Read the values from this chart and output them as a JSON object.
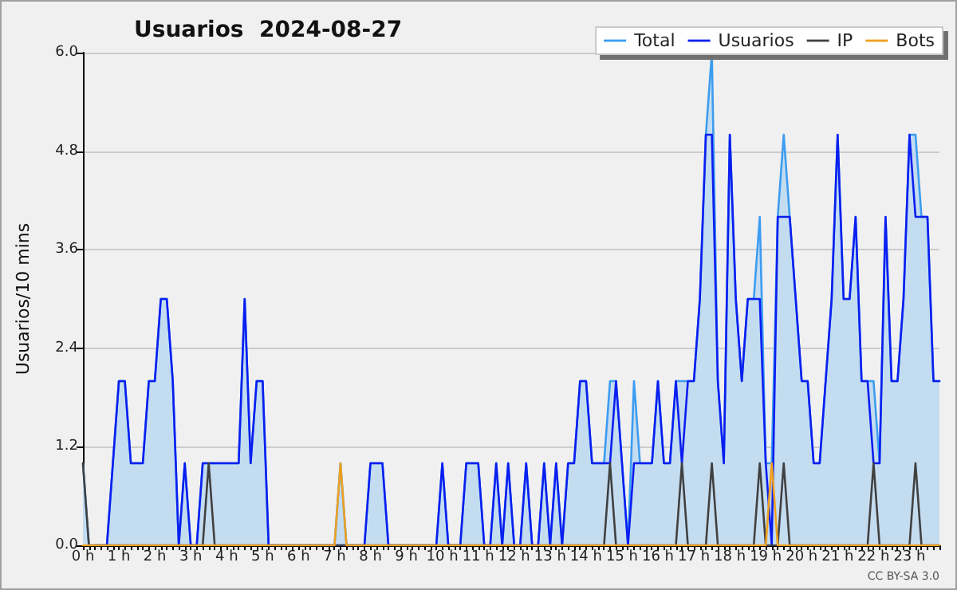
{
  "chart_data": {
    "type": "line",
    "title": "Usuarios  2024-08-27",
    "ylabel": "Usuarios/10 mins",
    "annotations": [
      "CC BY-SA 3.0"
    ],
    "categories": [
      "0 h",
      null,
      null,
      null,
      null,
      null,
      "1 h",
      null,
      null,
      null,
      null,
      null,
      "2 h",
      null,
      null,
      null,
      null,
      null,
      "3 h",
      null,
      null,
      null,
      null,
      null,
      "4 h",
      null,
      null,
      null,
      null,
      null,
      "5 h",
      null,
      null,
      null,
      null,
      null,
      "6 h",
      null,
      null,
      null,
      null,
      null,
      "7 h",
      null,
      null,
      null,
      null,
      null,
      "8 h",
      null,
      null,
      null,
      null,
      null,
      "9 h",
      null,
      null,
      null,
      null,
      null,
      "10 h",
      null,
      null,
      null,
      null,
      null,
      "11 h",
      null,
      null,
      null,
      null,
      null,
      "12 h",
      null,
      null,
      null,
      null,
      null,
      "13 h",
      null,
      null,
      null,
      null,
      null,
      "14 h",
      null,
      null,
      null,
      null,
      null,
      "15 h",
      null,
      null,
      null,
      null,
      null,
      "16 h",
      null,
      null,
      null,
      null,
      null,
      "17 h",
      null,
      null,
      null,
      null,
      null,
      "18 h",
      null,
      null,
      null,
      null,
      null,
      "19 h",
      null,
      null,
      null,
      null,
      null,
      "20 h",
      null,
      null,
      null,
      null,
      null,
      "21 h",
      null,
      null,
      null,
      null,
      null,
      "22 h",
      null,
      null,
      null,
      null,
      null,
      "23 h",
      null,
      null,
      null,
      null,
      null
    ],
    "series": [
      {
        "name": "Total",
        "type": "area",
        "color": "#3c9cf0",
        "values": [
          1,
          0,
          0,
          0,
          0,
          1,
          2,
          2,
          1,
          1,
          1,
          2,
          2,
          3,
          3,
          2,
          0,
          1,
          0,
          0,
          1,
          1,
          1,
          1,
          1,
          1,
          1,
          3,
          1,
          2,
          2,
          0,
          0,
          0,
          0,
          0,
          0,
          0,
          0,
          0,
          0,
          0,
          0,
          1,
          0,
          0,
          0,
          0,
          1,
          1,
          1,
          0,
          0,
          0,
          0,
          0,
          0,
          0,
          0,
          0,
          1,
          0,
          0,
          0,
          1,
          1,
          1,
          0,
          0,
          1,
          0,
          1,
          0,
          0,
          1,
          0,
          0,
          1,
          0,
          1,
          0,
          1,
          1,
          2,
          2,
          1,
          1,
          1,
          2,
          2,
          1,
          0,
          2,
          1,
          1,
          1,
          2,
          1,
          1,
          2,
          2,
          2,
          2,
          3,
          5,
          6,
          2,
          1,
          5,
          3,
          2,
          3,
          3,
          4,
          1,
          1,
          4,
          5,
          4,
          3,
          2,
          2,
          1,
          1,
          2,
          3,
          5,
          3,
          3,
          4,
          2,
          2,
          2,
          1,
          4,
          2,
          2,
          3,
          5,
          5,
          4,
          4,
          2,
          2
        ]
      },
      {
        "name": "Usuarios",
        "color": "#0a1ef0",
        "values": [
          null,
          null,
          0,
          0,
          0,
          1,
          2,
          2,
          1,
          1,
          1,
          2,
          2,
          3,
          3,
          2,
          0,
          1,
          0,
          0,
          1,
          1,
          1,
          1,
          1,
          1,
          1,
          3,
          1,
          2,
          2,
          0,
          0,
          0,
          0,
          0,
          0,
          0,
          0,
          0,
          0,
          0,
          0,
          0,
          0,
          0,
          0,
          0,
          1,
          1,
          1,
          0,
          0,
          0,
          0,
          0,
          0,
          0,
          0,
          0,
          1,
          0,
          0,
          0,
          1,
          1,
          1,
          0,
          0,
          1,
          0,
          1,
          0,
          0,
          1,
          0,
          0,
          1,
          0,
          1,
          0,
          1,
          1,
          2,
          2,
          1,
          1,
          1,
          1,
          2,
          1,
          0,
          1,
          1,
          1,
          1,
          2,
          1,
          1,
          2,
          1,
          2,
          2,
          3,
          5,
          5,
          2,
          1,
          5,
          3,
          2,
          3,
          3,
          3,
          1,
          0,
          4,
          4,
          4,
          3,
          2,
          2,
          1,
          1,
          2,
          3,
          5,
          3,
          3,
          4,
          2,
          2,
          1,
          1,
          4,
          2,
          2,
          3,
          5,
          4,
          4,
          4,
          2,
          2
        ]
      },
      {
        "name": "IP",
        "color": "#404040",
        "values": [
          1,
          0,
          0,
          0,
          0,
          0,
          0,
          0,
          0,
          0,
          0,
          0,
          0,
          0,
          0,
          0,
          0,
          0,
          0,
          0,
          0,
          1,
          0,
          0,
          0,
          0,
          0,
          0,
          0,
          0,
          0,
          0,
          0,
          0,
          0,
          0,
          0,
          0,
          0,
          0,
          0,
          0,
          0,
          0,
          0,
          0,
          0,
          0,
          0,
          0,
          0,
          0,
          0,
          0,
          0,
          0,
          0,
          0,
          0,
          0,
          0,
          0,
          0,
          0,
          0,
          0,
          0,
          0,
          0,
          0,
          0,
          0,
          0,
          0,
          0,
          0,
          0,
          0,
          0,
          0,
          0,
          0,
          0,
          0,
          0,
          0,
          0,
          0,
          1,
          0,
          0,
          0,
          0,
          0,
          0,
          0,
          0,
          0,
          0,
          0,
          1,
          0,
          0,
          0,
          0,
          1,
          0,
          0,
          0,
          0,
          0,
          0,
          0,
          1,
          0,
          0,
          0,
          1,
          0,
          0,
          0,
          0,
          0,
          0,
          0,
          0,
          0,
          0,
          0,
          0,
          0,
          0,
          1,
          0,
          0,
          0,
          0,
          0,
          0,
          1,
          0,
          0,
          0,
          0
        ]
      },
      {
        "name": "Bots",
        "color": "#f0a020",
        "values": [
          0,
          0,
          0,
          0,
          0,
          0,
          0,
          0,
          0,
          0,
          0,
          0,
          0,
          0,
          0,
          0,
          0,
          0,
          0,
          0,
          0,
          0,
          0,
          0,
          0,
          0,
          0,
          0,
          0,
          0,
          0,
          0,
          0,
          0,
          0,
          0,
          0,
          0,
          0,
          0,
          0,
          0,
          0,
          1,
          0,
          0,
          0,
          0,
          0,
          0,
          0,
          0,
          0,
          0,
          0,
          0,
          0,
          0,
          0,
          0,
          0,
          0,
          0,
          0,
          0,
          0,
          0,
          0,
          0,
          0,
          0,
          0,
          0,
          0,
          0,
          0,
          0,
          0,
          0,
          0,
          0,
          0,
          0,
          0,
          0,
          0,
          0,
          0,
          0,
          0,
          0,
          0,
          0,
          0,
          0,
          0,
          0,
          0,
          0,
          0,
          0,
          0,
          0,
          0,
          0,
          0,
          0,
          0,
          0,
          0,
          0,
          0,
          0,
          0,
          0,
          1,
          0,
          0,
          0,
          0,
          0,
          0,
          0,
          0,
          0,
          0,
          0,
          0,
          0,
          0,
          0,
          0,
          0,
          0,
          0,
          0,
          0,
          0,
          0,
          0,
          0,
          0,
          0,
          0
        ]
      }
    ],
    "ylim": [
      0,
      6
    ],
    "yticks": [
      {
        "value": 0,
        "label": "0.0"
      },
      {
        "value": 1.2,
        "label": "1.2"
      },
      {
        "value": 2.4,
        "label": "2.4"
      },
      {
        "value": 3.6,
        "label": "3.6"
      },
      {
        "value": 4.8,
        "label": "4.8"
      },
      {
        "value": 6,
        "label": "6.0"
      }
    ],
    "grid": "y",
    "legend": "top right",
    "marker": "none",
    "line_style": "solid"
  }
}
